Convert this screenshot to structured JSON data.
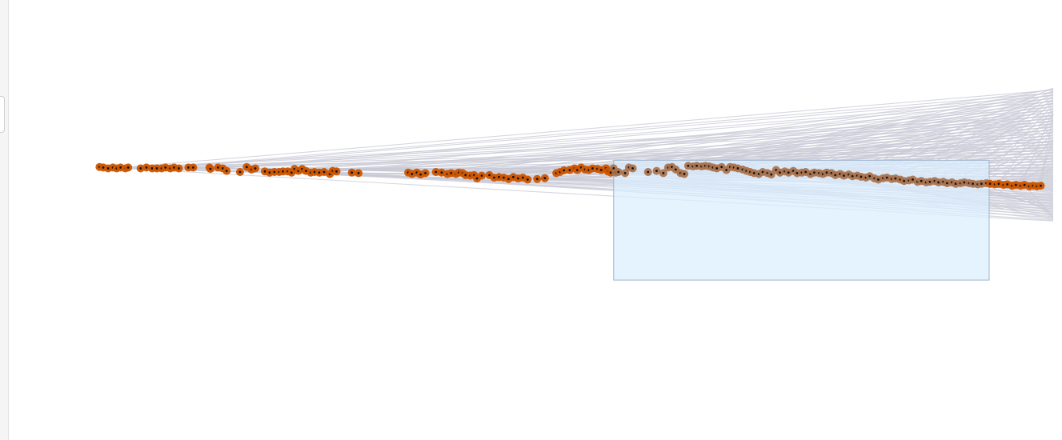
{
  "colors": {
    "point": "#cc5500",
    "point_selected": "#a9704a",
    "point_center": "#111111",
    "links": "#c8cad6",
    "brush_fill": "#dbeeff",
    "brush_stroke": "#9fb3cc"
  },
  "chart_data": {
    "type": "scatter",
    "title": "",
    "xlabel": "",
    "ylabel": "",
    "xlim": [
      0,
      100
    ],
    "ylim": [
      0,
      100
    ],
    "grid": false,
    "legend": "none",
    "selection": {
      "x": [
        54,
        93.3
      ],
      "y": [
        31.4,
        74.2
      ]
    },
    "link_fan": {
      "target_x": 100,
      "target_y": [
        52.5,
        100
      ]
    },
    "points": [
      [
        0.2,
        71.8
      ],
      [
        0.6,
        71.6
      ],
      [
        1.1,
        71.3
      ],
      [
        1.6,
        71.6
      ],
      [
        2.0,
        71.3
      ],
      [
        2.4,
        71.6
      ],
      [
        2.9,
        71.3
      ],
      [
        3.2,
        71.6
      ],
      [
        4.5,
        71.3
      ],
      [
        5.1,
        71.6
      ],
      [
        5.7,
        71.3
      ],
      [
        6.2,
        71.3
      ],
      [
        6.7,
        71.3
      ],
      [
        7.1,
        71.6
      ],
      [
        7.6,
        71.3
      ],
      [
        8.0,
        71.6
      ],
      [
        8.5,
        71.3
      ],
      [
        9.5,
        71.6
      ],
      [
        10.0,
        71.6
      ],
      [
        11.7,
        71.6
      ],
      [
        11.8,
        71.1
      ],
      [
        12.6,
        71.6
      ],
      [
        13.1,
        71.3
      ],
      [
        13.5,
        70.4
      ],
      [
        14.9,
        70.0
      ],
      [
        15.6,
        71.8
      ],
      [
        16.1,
        70.9
      ],
      [
        16.5,
        71.3
      ],
      [
        17.5,
        70.2
      ],
      [
        18.0,
        69.8
      ],
      [
        18.5,
        70.0
      ],
      [
        19.0,
        70.0
      ],
      [
        19.4,
        70.2
      ],
      [
        19.9,
        70.2
      ],
      [
        20.3,
        69.8
      ],
      [
        20.6,
        71.1
      ],
      [
        21.0,
        70.4
      ],
      [
        21.4,
        71.1
      ],
      [
        21.8,
        70.4
      ],
      [
        22.3,
        69.8
      ],
      [
        22.7,
        70.0
      ],
      [
        23.2,
        69.8
      ],
      [
        23.7,
        70.0
      ],
      [
        24.3,
        69.3
      ],
      [
        24.6,
        70.4
      ],
      [
        25.0,
        70.2
      ],
      [
        26.6,
        69.8
      ],
      [
        27.3,
        69.6
      ],
      [
        32.5,
        69.8
      ],
      [
        32.9,
        69.3
      ],
      [
        33.4,
        69.8
      ],
      [
        33.8,
        69.1
      ],
      [
        34.3,
        69.6
      ],
      [
        35.4,
        70.0
      ],
      [
        36.0,
        69.8
      ],
      [
        36.6,
        69.3
      ],
      [
        37.0,
        69.6
      ],
      [
        37.5,
        69.3
      ],
      [
        37.8,
        69.8
      ],
      [
        38.2,
        69.6
      ],
      [
        38.5,
        68.9
      ],
      [
        39.0,
        68.7
      ],
      [
        39.4,
        68.9
      ],
      [
        39.7,
        67.7
      ],
      [
        40.2,
        68.7
      ],
      [
        41.0,
        68.9
      ],
      [
        41.5,
        68.0
      ],
      [
        42.0,
        68.2
      ],
      [
        42.5,
        68.0
      ],
      [
        43.0,
        67.5
      ],
      [
        43.5,
        68.2
      ],
      [
        44.0,
        67.7
      ],
      [
        44.5,
        68.0
      ],
      [
        45.0,
        67.3
      ],
      [
        46.0,
        67.5
      ],
      [
        46.8,
        67.8
      ],
      [
        48.0,
        69.6
      ],
      [
        48.4,
        70.0
      ],
      [
        48.8,
        70.6
      ],
      [
        49.4,
        70.7
      ],
      [
        49.9,
        71.3
      ],
      [
        50.2,
        70.7
      ],
      [
        50.6,
        71.6
      ],
      [
        51.0,
        70.9
      ],
      [
        51.4,
        70.7
      ],
      [
        51.8,
        71.3
      ],
      [
        52.3,
        71.1
      ],
      [
        52.7,
        70.7
      ],
      [
        53.2,
        71.3
      ],
      [
        53.4,
        70.2
      ],
      [
        53.7,
        69.8
      ],
      [
        54.0,
        71.3
      ],
      [
        54.2,
        69.8
      ],
      [
        54.5,
        70.0
      ],
      [
        55.2,
        69.6
      ],
      [
        55.6,
        71.6
      ],
      [
        56.0,
        71.3
      ],
      [
        57.6,
        70.0
      ],
      [
        58.5,
        70.4
      ],
      [
        59.2,
        69.6
      ],
      [
        59.7,
        71.6
      ],
      [
        60.1,
        71.8
      ],
      [
        60.5,
        70.9
      ],
      [
        61.0,
        69.6
      ],
      [
        61.4,
        69.3
      ],
      [
        61.8,
        72.2
      ],
      [
        62.3,
        72.0
      ],
      [
        62.7,
        72.2
      ],
      [
        63.2,
        72.0
      ],
      [
        63.6,
        72.2
      ],
      [
        64.0,
        72.0
      ],
      [
        64.4,
        71.6
      ],
      [
        64.8,
        71.3
      ],
      [
        65.3,
        71.8
      ],
      [
        65.8,
        70.7
      ],
      [
        66.2,
        71.8
      ],
      [
        66.6,
        71.6
      ],
      [
        67.0,
        71.3
      ],
      [
        67.5,
        70.9
      ],
      [
        67.9,
        70.4
      ],
      [
        68.3,
        70.0
      ],
      [
        68.7,
        69.6
      ],
      [
        69.2,
        69.3
      ],
      [
        69.6,
        70.0
      ],
      [
        70.1,
        69.6
      ],
      [
        70.5,
        69.1
      ],
      [
        71.0,
        70.7
      ],
      [
        71.4,
        69.8
      ],
      [
        71.9,
        70.2
      ],
      [
        72.3,
        69.8
      ],
      [
        72.8,
        70.4
      ],
      [
        73.2,
        69.6
      ],
      [
        73.7,
        69.8
      ],
      [
        74.1,
        70.0
      ],
      [
        74.6,
        69.3
      ],
      [
        75.0,
        69.8
      ],
      [
        75.5,
        69.6
      ],
      [
        75.9,
        69.3
      ],
      [
        76.3,
        69.8
      ],
      [
        76.8,
        69.6
      ],
      [
        77.2,
        68.9
      ],
      [
        77.7,
        69.3
      ],
      [
        78.1,
        68.7
      ],
      [
        78.6,
        69.1
      ],
      [
        79.0,
        68.5
      ],
      [
        79.5,
        68.7
      ],
      [
        79.9,
        68.3
      ],
      [
        80.4,
        68.0
      ],
      [
        80.8,
        68.5
      ],
      [
        81.3,
        67.7
      ],
      [
        81.7,
        67.3
      ],
      [
        82.2,
        67.8
      ],
      [
        82.6,
        68.0
      ],
      [
        83.1,
        67.5
      ],
      [
        83.5,
        67.7
      ],
      [
        84.0,
        67.3
      ],
      [
        84.4,
        66.8
      ],
      [
        84.9,
        67.0
      ],
      [
        85.3,
        67.3
      ],
      [
        85.8,
        66.5
      ],
      [
        86.2,
        66.8
      ],
      [
        86.7,
        66.3
      ],
      [
        87.1,
        66.5
      ],
      [
        87.6,
        66.8
      ],
      [
        88.0,
        66.3
      ],
      [
        88.5,
        66.5
      ],
      [
        88.9,
        66.0
      ],
      [
        89.4,
        66.3
      ],
      [
        89.8,
        65.8
      ],
      [
        90.3,
        66.0
      ],
      [
        90.7,
        66.3
      ],
      [
        91.2,
        66.0
      ],
      [
        91.6,
        65.8
      ],
      [
        92.1,
        65.6
      ],
      [
        92.5,
        65.8
      ],
      [
        93.0,
        66.0
      ],
      [
        93.4,
        65.8
      ],
      [
        93.9,
        65.6
      ],
      [
        94.3,
        65.8
      ],
      [
        94.8,
        65.4
      ],
      [
        95.2,
        65.6
      ],
      [
        95.7,
        65.1
      ],
      [
        96.1,
        65.4
      ],
      [
        96.6,
        65.1
      ],
      [
        97.0,
        65.4
      ],
      [
        97.5,
        64.9
      ],
      [
        97.9,
        65.1
      ],
      [
        98.3,
        64.9
      ],
      [
        98.7,
        65.1
      ]
    ]
  }
}
